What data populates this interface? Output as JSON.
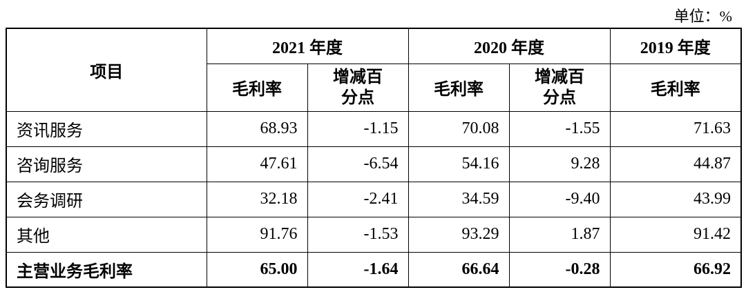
{
  "unit": "单位：%",
  "table": {
    "header": {
      "item": "项目",
      "years": [
        "2021 年度",
        "2020 年度",
        "2019 年度"
      ],
      "subheaders": [
        "毛利率",
        "增减百分点",
        "毛利率",
        "增减百分点",
        "毛利率"
      ]
    },
    "rows": [
      [
        "资讯服务",
        "68.93",
        "-1.15",
        "70.08",
        "-1.55",
        "71.63"
      ],
      [
        "咨询服务",
        "47.61",
        "-6.54",
        "54.16",
        "9.28",
        "44.87"
      ],
      [
        "会务调研",
        "32.18",
        "-2.41",
        "34.59",
        "-9.40",
        "43.99"
      ],
      [
        "其他",
        "91.76",
        "-1.53",
        "93.29",
        "1.87",
        "91.42"
      ],
      [
        "主营业务毛利率",
        "65.00",
        "-1.64",
        "66.64",
        "-0.28",
        "66.92"
      ]
    ]
  }
}
